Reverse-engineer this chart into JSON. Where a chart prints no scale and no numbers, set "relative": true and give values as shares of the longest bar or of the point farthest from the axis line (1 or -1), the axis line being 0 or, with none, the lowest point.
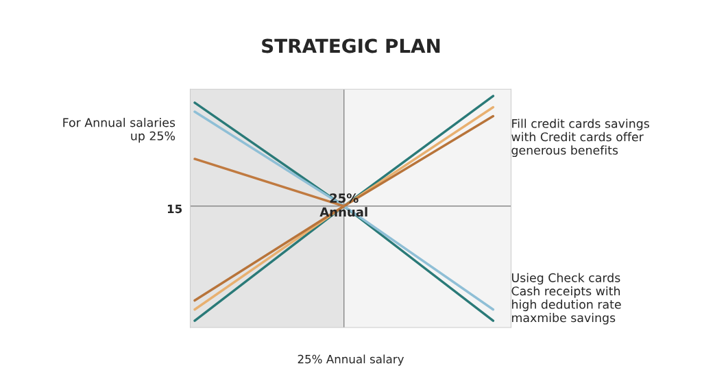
{
  "chart_data": {
    "type": "line",
    "title": "STRATEGIC PLAN",
    "xlabel": "25% Annual salary",
    "relative": true,
    "categories": [
      null,
      null,
      null
    ],
    "series": [
      {
        "color": "#2a7a78",
        "values": [
          0.97,
          0.51,
          0.0
        ]
      },
      {
        "color": "#2a7a78",
        "values": [
          0.0,
          0.51,
          1.0
        ]
      },
      {
        "color": "#8fbfd6",
        "values": [
          0.93,
          0.51,
          0.05
        ]
      },
      {
        "color": "#e8b070",
        "values": [
          0.05,
          0.51,
          0.95
        ]
      },
      {
        "color": "#b8743a",
        "values": [
          0.09,
          0.51,
          0.91
        ]
      },
      {
        "color": "#c07a40",
        "values": [
          0.72,
          0.51,
          null
        ]
      }
    ],
    "ref_lines": [
      {
        "axis": "y",
        "value": 0.51,
        "color": "#888888"
      }
    ],
    "annotations": [
      "15",
      "For Annual salaries\nup 25%",
      "Fill credit cards savings\nwith Credit cards offer\ngenerous benefits",
      "Usieg Check cards\nCash receipts with\nhigh dedution rate\nmaxmibe savings",
      {
        "text": "25%\nAnnual",
        "y": 0.51
      }
    ],
    "grid": false,
    "legend": false
  }
}
